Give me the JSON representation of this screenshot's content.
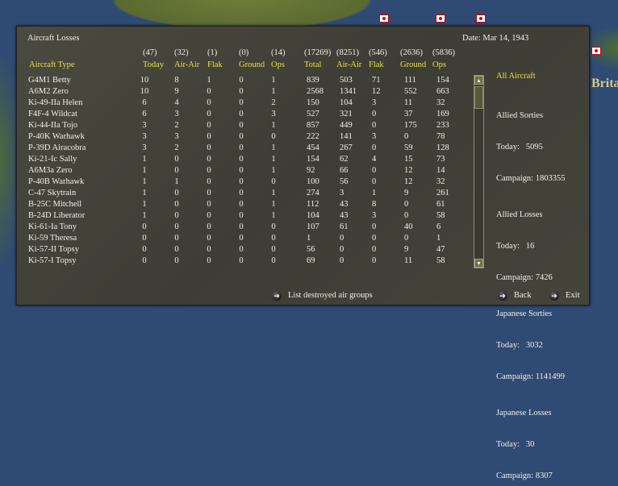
{
  "title": "Aircraft Losses",
  "date": "Date: Mar 14, 1943",
  "map_label": "Brita",
  "columns": [
    {
      "total": "(47)",
      "label": "Today"
    },
    {
      "total": "(32)",
      "label": "Air-Air"
    },
    {
      "total": "(1)",
      "label": "Flak"
    },
    {
      "total": "(0)",
      "label": "Ground"
    },
    {
      "total": "(14)",
      "label": "Ops"
    },
    {
      "total": "(17269)",
      "label": "Total"
    },
    {
      "total": "(8251)",
      "label": "Air-Air"
    },
    {
      "total": "(546)",
      "label": "Flak"
    },
    {
      "total": "(2636)",
      "label": "Ground"
    },
    {
      "total": "(5836)",
      "label": "Ops"
    }
  ],
  "type_header": "Aircraft Type",
  "rows": [
    [
      "G4M1 Betty",
      "10",
      "8",
      "1",
      "0",
      "1",
      "839",
      "503",
      "71",
      "111",
      "154"
    ],
    [
      "A6M2 Zero",
      "10",
      "9",
      "0",
      "0",
      "1",
      "2568",
      "1341",
      "12",
      "552",
      "663"
    ],
    [
      "Ki-49-IIa Helen",
      "6",
      "4",
      "0",
      "0",
      "2",
      "150",
      "104",
      "3",
      "11",
      "32"
    ],
    [
      "F4F-4 Wildcat",
      "6",
      "3",
      "0",
      "0",
      "3",
      "527",
      "321",
      "0",
      "37",
      "169"
    ],
    [
      "Ki-44-IIa Tojo",
      "3",
      "2",
      "0",
      "0",
      "1",
      "857",
      "449",
      "0",
      "175",
      "233"
    ],
    [
      "P-40K Warhawk",
      "3",
      "3",
      "0",
      "0",
      "0",
      "222",
      "141",
      "3",
      "0",
      "78"
    ],
    [
      "P-39D Airacobra",
      "3",
      "2",
      "0",
      "0",
      "1",
      "454",
      "267",
      "0",
      "59",
      "128"
    ],
    [
      "Ki-21-Ic Sally",
      "1",
      "0",
      "0",
      "0",
      "1",
      "154",
      "62",
      "4",
      "15",
      "73"
    ],
    [
      "A6M3a Zero",
      "1",
      "0",
      "0",
      "0",
      "1",
      "92",
      "66",
      "0",
      "12",
      "14"
    ],
    [
      "P-40B Warhawk",
      "1",
      "1",
      "0",
      "0",
      "0",
      "100",
      "56",
      "0",
      "12",
      "32"
    ],
    [
      "C-47 Skytrain",
      "1",
      "0",
      "0",
      "0",
      "1",
      "274",
      "3",
      "1",
      "9",
      "261"
    ],
    [
      "B-25C Mitchell",
      "1",
      "0",
      "0",
      "0",
      "1",
      "112",
      "43",
      "8",
      "0",
      "61"
    ],
    [
      "B-24D Liberator",
      "1",
      "0",
      "0",
      "0",
      "1",
      "104",
      "43",
      "3",
      "0",
      "58"
    ],
    [
      "Ki-61-Ia Tony",
      "0",
      "0",
      "0",
      "0",
      "0",
      "107",
      "61",
      "0",
      "40",
      "6"
    ],
    [
      "Ki-59 Theresa",
      "0",
      "0",
      "0",
      "0",
      "0",
      "1",
      "0",
      "0",
      "0",
      "1"
    ],
    [
      "Ki-57-II Topsy",
      "0",
      "0",
      "0",
      "0",
      "0",
      "56",
      "0",
      "0",
      "9",
      "47"
    ],
    [
      "Ki-57-I Topsy",
      "0",
      "0",
      "0",
      "0",
      "0",
      "69",
      "0",
      "0",
      "11",
      "58"
    ]
  ],
  "summary": {
    "heading": "All Aircraft",
    "groups": [
      {
        "title": "Allied Sorties",
        "today": "Today:   5095",
        "campaign": "Campaign: 1803355"
      },
      {
        "title": "Allied Losses",
        "today": "Today:   16",
        "campaign": "Campaign: 7426"
      },
      {
        "title": "Japanese Sorties",
        "today": "Today:   3032",
        "campaign": "Campaign: 1141499"
      },
      {
        "title": "Japanese Losses",
        "today": "Today:   30",
        "campaign": "Campaign: 8307"
      }
    ]
  },
  "buttons": {
    "list": "List destroyed air groups",
    "back": "Back",
    "exit": "Exit"
  },
  "icons": {
    "button": "arrow-right-circle-icon",
    "scroll_up": "up-arrow-icon",
    "scroll_down": "down-arrow-icon"
  }
}
